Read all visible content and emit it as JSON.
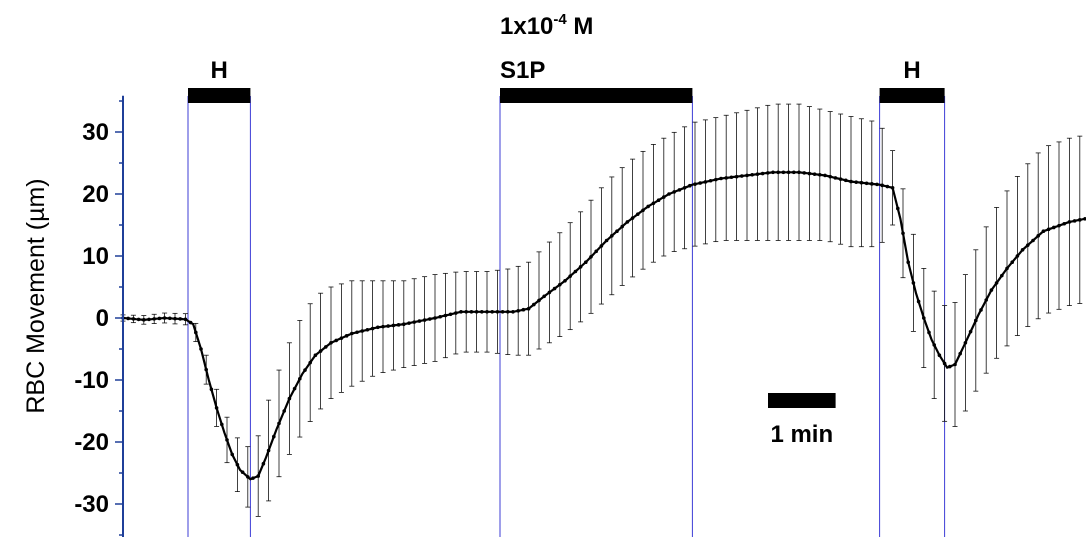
{
  "chart_data": {
    "type": "line",
    "title": "",
    "xlabel": "",
    "ylabel": "RBC Movement (µm)",
    "ylim": [
      -36,
      36
    ],
    "xlim": [
      0,
      20.7
    ],
    "x_unit": "min",
    "yticks": [
      {
        "value": 30,
        "label": "30"
      },
      {
        "value": 20,
        "label": "20"
      },
      {
        "value": 10,
        "label": "10"
      },
      {
        "value": 0,
        "label": "0"
      },
      {
        "value": -10,
        "label": "-10"
      },
      {
        "value": -20,
        "label": "-20"
      },
      {
        "value": -30,
        "label": "-30"
      }
    ],
    "grid": false,
    "legend": "none",
    "scale_bar": {
      "label": "1 min",
      "length_min": 1
    },
    "treatments": [
      {
        "label": "H",
        "start": 1.25,
        "end": 2.45
      },
      {
        "label_line1": "1x10",
        "label_exp": "-4",
        "label_unit": " M",
        "label_line2": "S1P",
        "start": 7.25,
        "end": 10.95
      },
      {
        "label": "H",
        "start": 14.55,
        "end": 15.8
      }
    ],
    "series": [
      {
        "color": "#000000",
        "points": [
          {
            "x": 0.0,
            "y": 0.0,
            "err": 0.5
          },
          {
            "x": 0.4,
            "y": -0.3,
            "err": 0.7
          },
          {
            "x": 0.8,
            "y": 0.0,
            "err": 0.8
          },
          {
            "x": 1.2,
            "y": -0.2,
            "err": 0.9
          },
          {
            "x": 1.35,
            "y": -1.0,
            "err": 1.2
          },
          {
            "x": 1.5,
            "y": -5.0,
            "err": 2.0
          },
          {
            "x": 1.65,
            "y": -10.0,
            "err": 2.5
          },
          {
            "x": 1.8,
            "y": -14.5,
            "err": 3.0
          },
          {
            "x": 1.95,
            "y": -18.5,
            "err": 3.5
          },
          {
            "x": 2.1,
            "y": -22.0,
            "err": 4.0
          },
          {
            "x": 2.25,
            "y": -24.5,
            "err": 4.5
          },
          {
            "x": 2.45,
            "y": -26.0,
            "err": 5.0
          },
          {
            "x": 2.6,
            "y": -25.5,
            "err": 6.5
          },
          {
            "x": 2.75,
            "y": -22.5,
            "err": 8.0
          },
          {
            "x": 2.95,
            "y": -18.0,
            "err": 8.5
          },
          {
            "x": 3.2,
            "y": -13.0,
            "err": 9.0
          },
          {
            "x": 3.45,
            "y": -9.0,
            "err": 9.5
          },
          {
            "x": 3.7,
            "y": -6.0,
            "err": 9.5
          },
          {
            "x": 4.0,
            "y": -4.0,
            "err": 9.0
          },
          {
            "x": 4.4,
            "y": -2.5,
            "err": 8.5
          },
          {
            "x": 4.9,
            "y": -1.5,
            "err": 7.5
          },
          {
            "x": 5.4,
            "y": -1.0,
            "err": 7.0
          },
          {
            "x": 6.0,
            "y": 0.0,
            "err": 7.0
          },
          {
            "x": 6.5,
            "y": 1.0,
            "err": 6.5
          },
          {
            "x": 7.0,
            "y": 1.0,
            "err": 6.5
          },
          {
            "x": 7.5,
            "y": 1.0,
            "err": 7.0
          },
          {
            "x": 7.8,
            "y": 1.5,
            "err": 7.5
          },
          {
            "x": 8.1,
            "y": 3.5,
            "err": 8.0
          },
          {
            "x": 8.5,
            "y": 6.0,
            "err": 8.5
          },
          {
            "x": 8.9,
            "y": 9.0,
            "err": 9.0
          },
          {
            "x": 9.3,
            "y": 12.5,
            "err": 9.5
          },
          {
            "x": 9.7,
            "y": 15.5,
            "err": 9.5
          },
          {
            "x": 10.1,
            "y": 18.0,
            "err": 9.5
          },
          {
            "x": 10.5,
            "y": 20.0,
            "err": 9.5
          },
          {
            "x": 10.95,
            "y": 21.5,
            "err": 10.0
          },
          {
            "x": 11.5,
            "y": 22.5,
            "err": 10.0
          },
          {
            "x": 12.0,
            "y": 23.0,
            "err": 10.5
          },
          {
            "x": 12.5,
            "y": 23.5,
            "err": 11.0
          },
          {
            "x": 13.0,
            "y": 23.5,
            "err": 11.0
          },
          {
            "x": 13.5,
            "y": 23.0,
            "err": 10.5
          },
          {
            "x": 14.0,
            "y": 22.0,
            "err": 10.5
          },
          {
            "x": 14.55,
            "y": 21.5,
            "err": 10.0
          },
          {
            "x": 14.8,
            "y": 21.0,
            "err": 6.0
          },
          {
            "x": 14.95,
            "y": 16.0,
            "err": 7.0
          },
          {
            "x": 15.1,
            "y": 9.0,
            "err": 7.5
          },
          {
            "x": 15.25,
            "y": 4.0,
            "err": 8.0
          },
          {
            "x": 15.4,
            "y": 0.0,
            "err": 8.0
          },
          {
            "x": 15.55,
            "y": -3.5,
            "err": 8.5
          },
          {
            "x": 15.7,
            "y": -6.0,
            "err": 9.0
          },
          {
            "x": 15.85,
            "y": -8.0,
            "err": 9.5
          },
          {
            "x": 16.0,
            "y": -7.5,
            "err": 10.0
          },
          {
            "x": 16.2,
            "y": -4.0,
            "err": 11.0
          },
          {
            "x": 16.45,
            "y": 0.5,
            "err": 11.5
          },
          {
            "x": 16.7,
            "y": 4.5,
            "err": 12.0
          },
          {
            "x": 17.0,
            "y": 8.0,
            "err": 12.5
          },
          {
            "x": 17.3,
            "y": 11.0,
            "err": 13.0
          },
          {
            "x": 17.7,
            "y": 14.0,
            "err": 13.5
          },
          {
            "x": 18.2,
            "y": 15.5,
            "err": 13.5
          },
          {
            "x": 18.8,
            "y": 16.5,
            "err": 13.5
          },
          {
            "x": 19.4,
            "y": 17.0,
            "err": 13.5
          },
          {
            "x": 20.0,
            "y": 17.0,
            "err": 13.5
          },
          {
            "x": 20.7,
            "y": 17.0,
            "err": 13.5
          }
        ]
      }
    ]
  }
}
